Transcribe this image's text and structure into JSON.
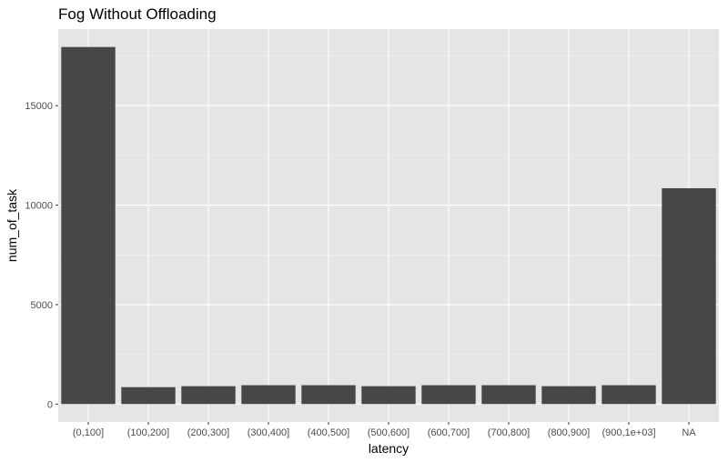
{
  "chart_data": {
    "type": "bar",
    "title": "Fog Without Offloading",
    "xlabel": "latency",
    "ylabel": "num_of_task",
    "categories": [
      "(0,100]",
      "(100,200]",
      "(200,300]",
      "(300,400]",
      "(400,500]",
      "(500,600]",
      "(600,700]",
      "(700,800]",
      "(800,900]",
      "(900,1e+03]",
      "NA"
    ],
    "values": [
      17950,
      850,
      900,
      950,
      950,
      900,
      950,
      950,
      900,
      950,
      10850
    ],
    "ylim": [
      -900,
      18850
    ],
    "yticks": [
      0,
      5000,
      10000,
      15000
    ],
    "bar_color": "#474747",
    "panel_background": "#e5e5e5",
    "grid": true
  }
}
